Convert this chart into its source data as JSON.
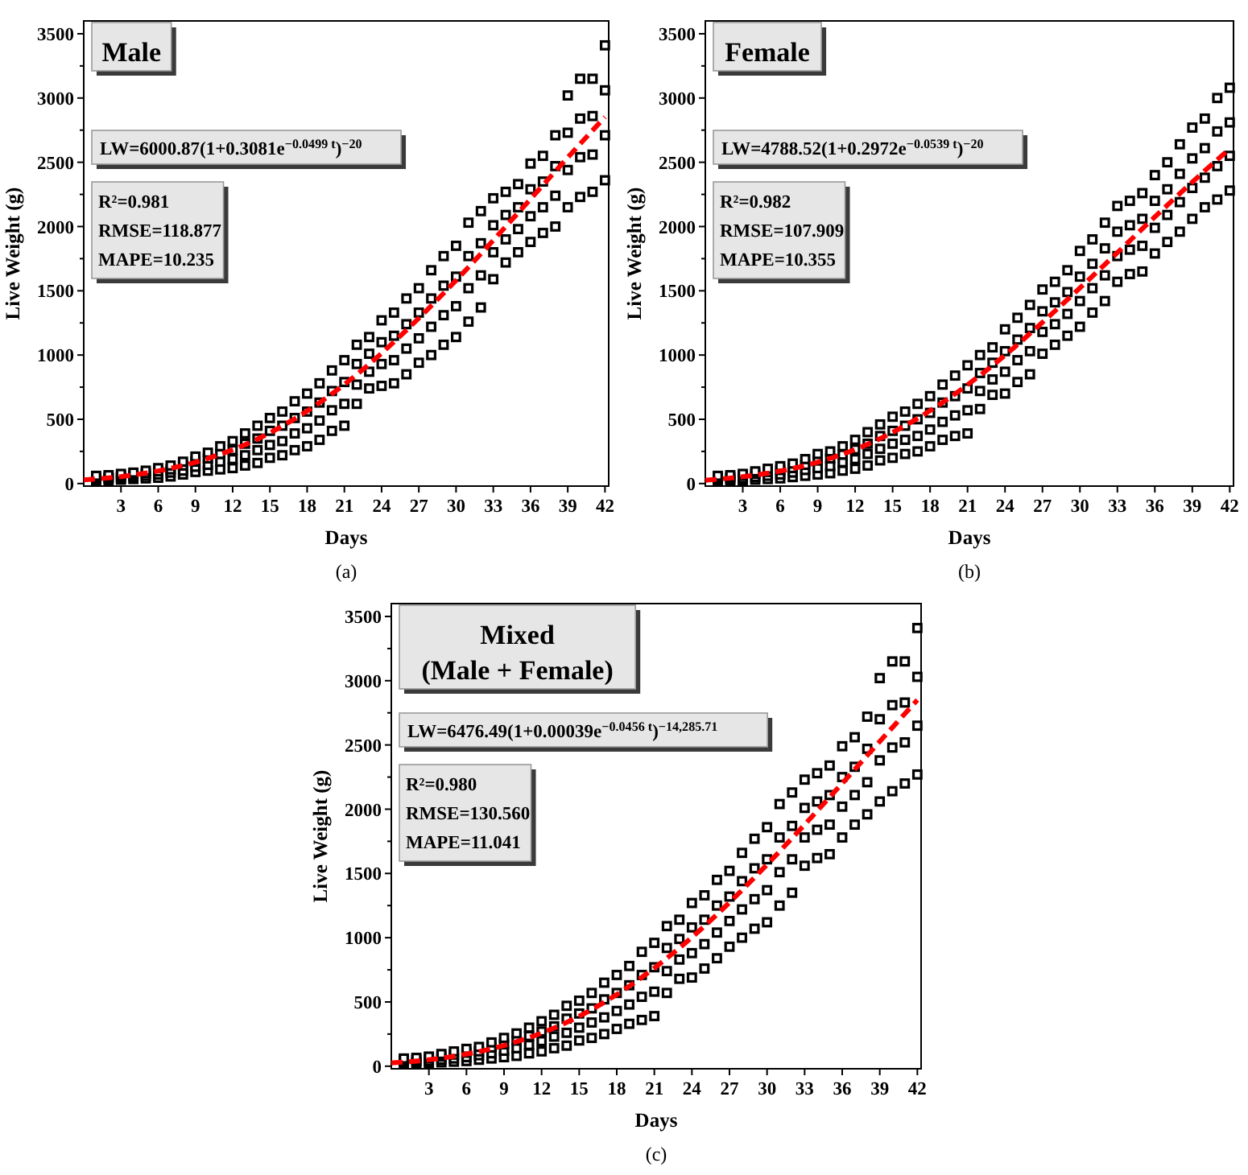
{
  "chart_data": [
    {
      "type": "scatter",
      "title": "Male",
      "xlabel": "Days",
      "ylabel": "Live Weight (g)",
      "xlim": [
        0,
        42.3
      ],
      "xticks": [
        3,
        6,
        9,
        12,
        15,
        18,
        21,
        24,
        27,
        30,
        33,
        36,
        39,
        42
      ],
      "ylim": [
        -20,
        3600
      ],
      "yticks": [
        0,
        {
          "value": 250,
          "label": null
        },
        500,
        {
          "value": 750,
          "label": null
        },
        1000,
        {
          "value": 1250,
          "label": null
        },
        1500,
        {
          "value": 1750,
          "label": null
        },
        2000,
        {
          "value": 2250,
          "label": null
        },
        2500,
        {
          "value": 2750,
          "label": null
        },
        3000,
        {
          "value": 3250,
          "label": null
        },
        3500
      ],
      "grid": false,
      "annotations": [
        "LW=6000.87(1+0.3081e$^{−0.0499 t}$)$^{−20}$",
        "R²=0.981",
        "RMSE=118.877",
        "MAPE=10.235",
        "(a)"
      ],
      "series": [
        {
          "marker": "square",
          "color": "#000000",
          "x": [
            1,
            1,
            1,
            1,
            2,
            2,
            2,
            2,
            3,
            3,
            3,
            3,
            4,
            4,
            4,
            4,
            5,
            5,
            5,
            5,
            6,
            6,
            6,
            6,
            7,
            7,
            7,
            7,
            8,
            8,
            8,
            8,
            9,
            9,
            9,
            9,
            10,
            10,
            10,
            10,
            11,
            11,
            11,
            11,
            12,
            12,
            12,
            12,
            13,
            13,
            13,
            13,
            14,
            14,
            14,
            14,
            15,
            15,
            15,
            15,
            16,
            16,
            16,
            16,
            17,
            17,
            17,
            17,
            18,
            18,
            18,
            18,
            19,
            19,
            19,
            19,
            20,
            20,
            20,
            20,
            21,
            21,
            21,
            21,
            22,
            22,
            22,
            22,
            23,
            23,
            23,
            23,
            24,
            24,
            24,
            24,
            25,
            25,
            25,
            25,
            26,
            26,
            26,
            26,
            27,
            27,
            27,
            27,
            28,
            28,
            28,
            28,
            29,
            29,
            29,
            29,
            30,
            30,
            30,
            30,
            31,
            31,
            31,
            31,
            32,
            32,
            32,
            32,
            33,
            33,
            33,
            33,
            34,
            34,
            34,
            34,
            35,
            35,
            35,
            35,
            36,
            36,
            36,
            36,
            37,
            37,
            37,
            37,
            38,
            38,
            38,
            38,
            39,
            39,
            39,
            39,
            40,
            40,
            40,
            40,
            41,
            41,
            41,
            41,
            42,
            42,
            42,
            42
          ],
          "values": [
            20,
            35,
            45,
            60,
            25,
            40,
            50,
            65,
            30,
            45,
            60,
            75,
            35,
            50,
            70,
            85,
            40,
            60,
            80,
            100,
            45,
            70,
            95,
            120,
            55,
            85,
            110,
            140,
            70,
            100,
            140,
            170,
            90,
            130,
            170,
            210,
            100,
            145,
            195,
            240,
            110,
            170,
            230,
            290,
            120,
            190,
            260,
            330,
            140,
            220,
            310,
            390,
            160,
            260,
            350,
            450,
            200,
            300,
            410,
            510,
            220,
            330,
            450,
            560,
            260,
            390,
            510,
            640,
            290,
            430,
            560,
            700,
            340,
            490,
            630,
            780,
            410,
            570,
            720,
            880,
            450,
            620,
            790,
            960,
            620,
            770,
            930,
            1080,
            740,
            870,
            1010,
            1140,
            760,
            930,
            1100,
            1270,
            780,
            960,
            1150,
            1330,
            850,
            1050,
            1240,
            1440,
            940,
            1130,
            1330,
            1520,
            1000,
            1220,
            1440,
            1660,
            1080,
            1310,
            1540,
            1770,
            1140,
            1380,
            1610,
            1850,
            1260,
            1520,
            1770,
            2030,
            1370,
            1620,
            1870,
            2120,
            1590,
            1800,
            2010,
            2220,
            1720,
            1900,
            2090,
            2270,
            1800,
            1980,
            2150,
            2330,
            1880,
            2080,
            2290,
            2490,
            1950,
            2150,
            2350,
            2550,
            2000,
            2240,
            2470,
            2710,
            2150,
            2440,
            2730,
            3020,
            2230,
            2540,
            2840,
            3150,
            2270,
            2560,
            2860,
            3150,
            2360,
            2710,
            3060,
            3410
          ]
        },
        {
          "type": "line",
          "marker": "none",
          "line_style": "dashed",
          "color": "#ff0000",
          "x": [
            0,
            3,
            6,
            9,
            12,
            15,
            18,
            21,
            24,
            27,
            30,
            33,
            36,
            39,
            42
          ],
          "values": [
            28,
            54,
            98,
            166,
            263,
            394,
            564,
            771,
            1014,
            1287,
            1581,
            1893,
            2214,
            2537,
            2852
          ]
        }
      ]
    },
    {
      "type": "scatter",
      "title": "Female",
      "xlabel": "Days",
      "ylabel": "Live Weight (g)",
      "xlim": [
        0,
        42.3
      ],
      "xticks": [
        3,
        6,
        9,
        12,
        15,
        18,
        21,
        24,
        27,
        30,
        33,
        36,
        39,
        42
      ],
      "ylim": [
        -20,
        3600
      ],
      "yticks": [
        0,
        {
          "value": 250,
          "label": null
        },
        500,
        {
          "value": 750,
          "label": null
        },
        1000,
        {
          "value": 1250,
          "label": null
        },
        1500,
        {
          "value": 1750,
          "label": null
        },
        2000,
        {
          "value": 2250,
          "label": null
        },
        2500,
        {
          "value": 2750,
          "label": null
        },
        3000,
        {
          "value": 3250,
          "label": null
        },
        3500
      ],
      "grid": false,
      "annotations": [
        "LW=4788.52(1+0.2972e$^{−0.0539 t}$)$^{−20}$",
        "R²=0.982",
        "RMSE=107.909",
        "MAPE=10.355",
        "(b)"
      ],
      "series": [
        {
          "marker": "square",
          "color": "#000000",
          "x": [
            1,
            1,
            1,
            1,
            2,
            2,
            2,
            2,
            3,
            3,
            3,
            3,
            4,
            4,
            4,
            4,
            5,
            5,
            5,
            5,
            6,
            6,
            6,
            6,
            7,
            7,
            7,
            7,
            8,
            8,
            8,
            8,
            9,
            9,
            9,
            9,
            10,
            10,
            10,
            10,
            11,
            11,
            11,
            11,
            12,
            12,
            12,
            12,
            13,
            13,
            13,
            13,
            14,
            14,
            14,
            14,
            15,
            15,
            15,
            15,
            16,
            16,
            16,
            16,
            17,
            17,
            17,
            17,
            18,
            18,
            18,
            18,
            19,
            19,
            19,
            19,
            20,
            20,
            20,
            20,
            21,
            21,
            21,
            21,
            22,
            22,
            22,
            22,
            23,
            23,
            23,
            23,
            24,
            24,
            24,
            24,
            25,
            25,
            25,
            25,
            26,
            26,
            26,
            26,
            27,
            27,
            27,
            27,
            28,
            28,
            28,
            28,
            29,
            29,
            29,
            29,
            30,
            30,
            30,
            30,
            31,
            31,
            31,
            31,
            32,
            32,
            32,
            32,
            33,
            33,
            33,
            33,
            34,
            34,
            34,
            34,
            35,
            35,
            35,
            35,
            36,
            36,
            36,
            36,
            37,
            37,
            37,
            37,
            38,
            38,
            38,
            38,
            39,
            39,
            39,
            39,
            40,
            40,
            40,
            40,
            41,
            41,
            41,
            41,
            42,
            42,
            42,
            42
          ],
          "values": [
            20,
            35,
            45,
            60,
            20,
            35,
            50,
            65,
            25,
            40,
            60,
            75,
            30,
            50,
            75,
            95,
            35,
            60,
            90,
            115,
            40,
            70,
            105,
            135,
            50,
            85,
            120,
            155,
            60,
            105,
            145,
            190,
            70,
            120,
            180,
            230,
            80,
            135,
            195,
            250,
            100,
            165,
            225,
            290,
            115,
            190,
            265,
            340,
            140,
            230,
            310,
            400,
            180,
            270,
            370,
            460,
            200,
            310,
            410,
            520,
            230,
            340,
            450,
            560,
            250,
            370,
            500,
            620,
            290,
            420,
            550,
            680,
            340,
            480,
            630,
            770,
            370,
            530,
            680,
            840,
            390,
            570,
            740,
            920,
            580,
            720,
            860,
            1000,
            690,
            810,
            940,
            1060,
            700,
            870,
            1030,
            1200,
            790,
            960,
            1120,
            1290,
            850,
            1030,
            1210,
            1390,
            1010,
            1180,
            1340,
            1510,
            1080,
            1240,
            1410,
            1570,
            1150,
            1320,
            1490,
            1660,
            1220,
            1420,
            1610,
            1810,
            1330,
            1520,
            1710,
            1900,
            1420,
            1620,
            1830,
            2030,
            1570,
            1770,
            1960,
            2160,
            1630,
            1820,
            2010,
            2200,
            1650,
            1850,
            2060,
            2260,
            1790,
            1990,
            2200,
            2400,
            1880,
            2090,
            2290,
            2500,
            1960,
            2190,
            2410,
            2640,
            2060,
            2300,
            2530,
            2770,
            2150,
            2380,
            2610,
            2840,
            2210,
            2470,
            2740,
            3000,
            2280,
            2550,
            2810,
            3080
          ]
        },
        {
          "type": "line",
          "marker": "none",
          "line_style": "dashed",
          "color": "#ff0000",
          "x": [
            0,
            3,
            6,
            9,
            12,
            15,
            18,
            21,
            24,
            27,
            30,
            33,
            36,
            39,
            42
          ],
          "values": [
            26,
            53,
            97,
            166,
            265,
            398,
            567,
            768,
            998,
            1254,
            1522,
            1797,
            2075,
            2346,
            2606
          ]
        }
      ]
    },
    {
      "type": "scatter",
      "title": "Mixed",
      "subtitle": "(Male + Female)",
      "xlabel": "Days",
      "ylabel": "Live Weight (g)",
      "xlim": [
        0,
        42.3
      ],
      "xticks": [
        3,
        6,
        9,
        12,
        15,
        18,
        21,
        24,
        27,
        30,
        33,
        36,
        39,
        42
      ],
      "ylim": [
        -20,
        3600
      ],
      "yticks": [
        0,
        {
          "value": 250,
          "label": null
        },
        500,
        {
          "value": 750,
          "label": null
        },
        1000,
        {
          "value": 1250,
          "label": null
        },
        1500,
        {
          "value": 1750,
          "label": null
        },
        2000,
        {
          "value": 2250,
          "label": null
        },
        2500,
        {
          "value": 2750,
          "label": null
        },
        3000,
        {
          "value": 3250,
          "label": null
        },
        3500
      ],
      "grid": false,
      "annotations": [
        "LW=6476.49(1+0.00039e$^{−0.0456 t}$)$^{−14,285.71}$",
        "R²=0.980",
        "RMSE=130.560",
        "MAPE=11.041",
        "(c)"
      ],
      "series": [
        {
          "marker": "square",
          "color": "#000000",
          "x": [
            1,
            1,
            1,
            1,
            2,
            2,
            2,
            2,
            3,
            3,
            3,
            3,
            4,
            4,
            4,
            4,
            5,
            5,
            5,
            5,
            6,
            6,
            6,
            6,
            7,
            7,
            7,
            7,
            8,
            8,
            8,
            8,
            9,
            9,
            9,
            9,
            10,
            10,
            10,
            10,
            11,
            11,
            11,
            11,
            12,
            12,
            12,
            12,
            13,
            13,
            13,
            13,
            14,
            14,
            14,
            14,
            15,
            15,
            15,
            15,
            16,
            16,
            16,
            16,
            17,
            17,
            17,
            17,
            18,
            18,
            18,
            18,
            19,
            19,
            19,
            19,
            20,
            20,
            20,
            20,
            21,
            21,
            21,
            21,
            22,
            22,
            22,
            22,
            23,
            23,
            23,
            23,
            24,
            24,
            24,
            24,
            25,
            25,
            25,
            25,
            26,
            26,
            26,
            26,
            27,
            27,
            27,
            27,
            28,
            28,
            28,
            28,
            29,
            29,
            29,
            29,
            30,
            30,
            30,
            30,
            31,
            31,
            31,
            31,
            32,
            32,
            32,
            32,
            33,
            33,
            33,
            33,
            34,
            34,
            34,
            34,
            35,
            35,
            35,
            35,
            36,
            36,
            36,
            36,
            37,
            37,
            37,
            37,
            38,
            38,
            38,
            38,
            39,
            39,
            39,
            39,
            40,
            40,
            40,
            40,
            41,
            41,
            41,
            41,
            42,
            42,
            42,
            42
          ],
          "values": [
            20,
            35,
            45,
            60,
            20,
            35,
            50,
            65,
            25,
            40,
            60,
            75,
            30,
            50,
            75,
            95,
            35,
            60,
            90,
            115,
            40,
            70,
            105,
            135,
            50,
            85,
            115,
            150,
            60,
            100,
            145,
            185,
            70,
            120,
            170,
            220,
            80,
            140,
            200,
            255,
            100,
            165,
            235,
            300,
            115,
            195,
            270,
            350,
            140,
            230,
            310,
            400,
            160,
            260,
            370,
            470,
            200,
            300,
            410,
            510,
            220,
            340,
            450,
            570,
            250,
            380,
            520,
            650,
            290,
            430,
            570,
            710,
            330,
            480,
            630,
            780,
            360,
            540,
            710,
            890,
            390,
            580,
            770,
            960,
            570,
            740,
            920,
            1090,
            680,
            830,
            990,
            1140,
            690,
            880,
            1080,
            1270,
            760,
            950,
            1140,
            1330,
            840,
            1040,
            1250,
            1450,
            930,
            1130,
            1320,
            1520,
            1000,
            1220,
            1440,
            1660,
            1070,
            1300,
            1540,
            1770,
            1120,
            1370,
            1610,
            1860,
            1250,
            1510,
            1780,
            2040,
            1350,
            1610,
            1870,
            2130,
            1560,
            1780,
            2010,
            2230,
            1620,
            1840,
            2060,
            2280,
            1650,
            1880,
            2110,
            2340,
            1780,
            2020,
            2250,
            2490,
            1880,
            2110,
            2330,
            2560,
            1960,
            2210,
            2470,
            2720,
            2060,
            2380,
            2700,
            3020,
            2140,
            2480,
            2810,
            3150,
            2200,
            2520,
            2830,
            3150,
            2270,
            2650,
            3030,
            3410
          ]
        },
        {
          "type": "line",
          "marker": "none",
          "line_style": "dashed",
          "color": "#ff0000",
          "x": [
            0,
            3,
            6,
            9,
            12,
            15,
            18,
            21,
            24,
            27,
            30,
            33,
            36,
            39,
            42
          ],
          "values": [
            25,
            50,
            94,
            161,
            258,
            389,
            558,
            764,
            1003,
            1274,
            1569,
            1880,
            2201,
            2527,
            2850
          ]
        }
      ]
    }
  ]
}
